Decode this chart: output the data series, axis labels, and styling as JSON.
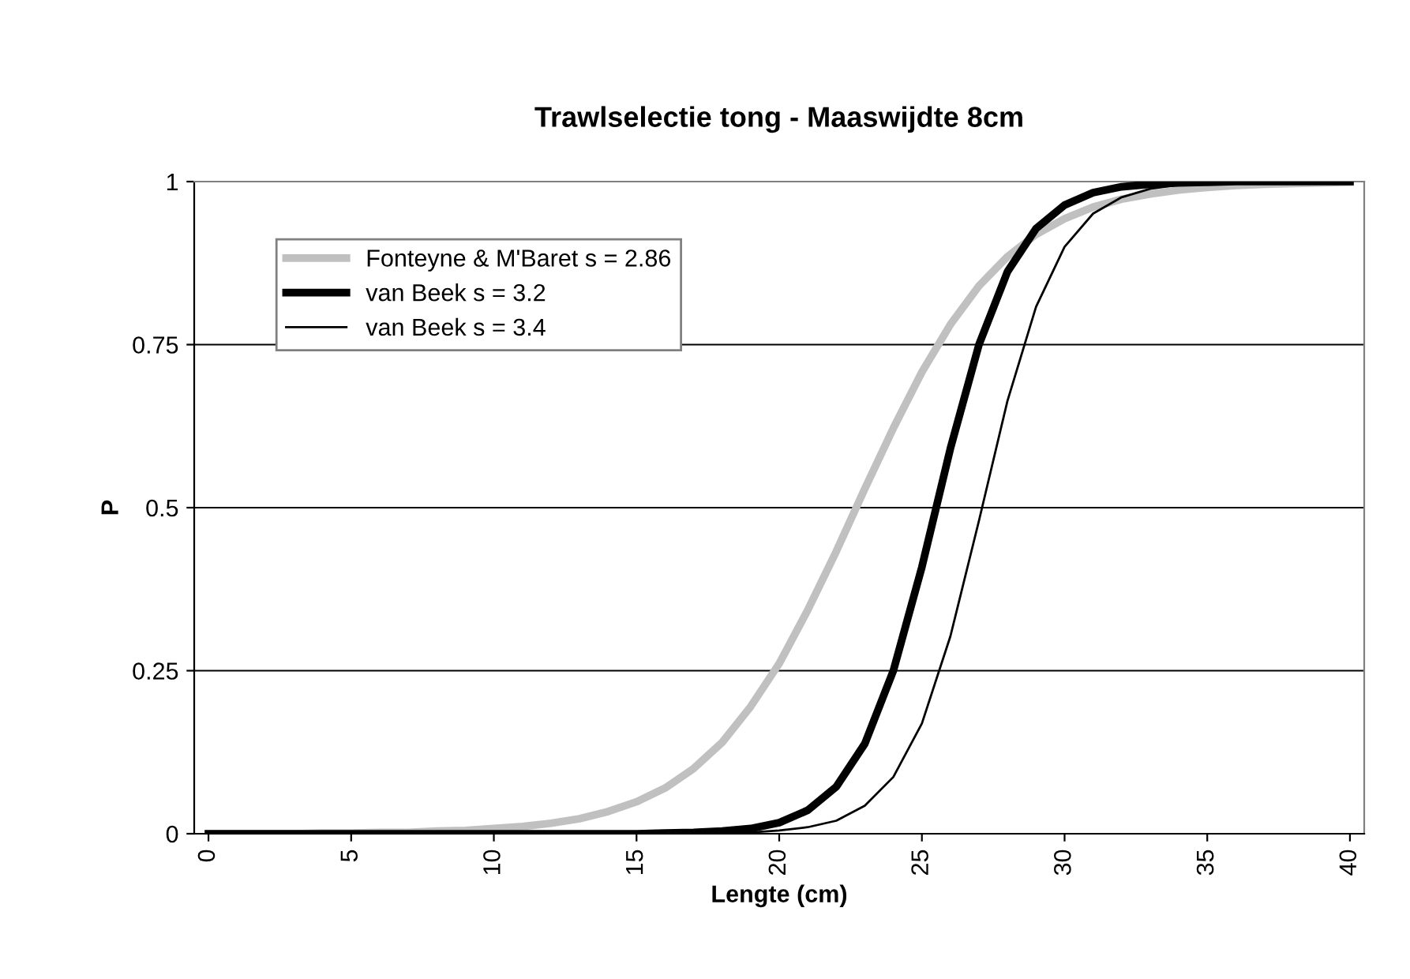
{
  "chart_data": {
    "type": "line",
    "title": "Trawlselectie tong - Maaswijdte 8cm",
    "xlabel": "Lengte (cm)",
    "ylabel": "P",
    "x": [
      0,
      1,
      2,
      3,
      4,
      5,
      6,
      7,
      8,
      9,
      10,
      11,
      12,
      13,
      14,
      15,
      16,
      17,
      18,
      19,
      20,
      21,
      22,
      23,
      24,
      25,
      26,
      27,
      28,
      29,
      30,
      31,
      32,
      33,
      34,
      35,
      36,
      37,
      38,
      39,
      40
    ],
    "series": [
      {
        "name": "Fonteyne & M'Baret s = 2.86",
        "color": "#c0c0c0",
        "values": [
          0,
          0,
          0,
          0,
          0.001,
          0.001,
          0.002,
          0.002,
          0.004,
          0.005,
          0.008,
          0.011,
          0.016,
          0.023,
          0.034,
          0.049,
          0.07,
          0.1,
          0.14,
          0.195,
          0.261,
          0.343,
          0.433,
          0.529,
          0.622,
          0.708,
          0.781,
          0.84,
          0.885,
          0.919,
          0.943,
          0.961,
          0.973,
          0.981,
          0.987,
          0.991,
          0.994,
          0.996,
          0.997,
          0.998,
          0.999
        ]
      },
      {
        "name": "van Beek s = 3.2",
        "color": "#000000",
        "values": [
          0,
          0,
          0,
          0,
          0,
          0,
          0,
          0,
          0,
          0,
          0,
          0,
          0,
          0,
          0,
          0,
          0.001,
          0.002,
          0.004,
          0.008,
          0.017,
          0.036,
          0.072,
          0.138,
          0.25,
          0.409,
          0.591,
          0.75,
          0.862,
          0.928,
          0.964,
          0.983,
          0.992,
          0.996,
          0.998,
          0.999,
          1,
          1,
          1,
          1,
          1
        ]
      },
      {
        "name": "van Beek s = 3.4",
        "color": "#000000",
        "values": [
          0,
          0,
          0,
          0,
          0,
          0,
          0,
          0,
          0,
          0,
          0,
          0,
          0,
          0,
          0,
          0,
          0,
          0,
          0.001,
          0.002,
          0.005,
          0.01,
          0.02,
          0.043,
          0.087,
          0.169,
          0.303,
          0.48,
          0.664,
          0.808,
          0.9,
          0.951,
          0.976,
          0.989,
          0.995,
          0.998,
          0.999,
          1,
          1,
          1,
          1
        ]
      }
    ],
    "xlim": [
      -0.5,
      40.5
    ],
    "xticks": [
      0,
      5,
      10,
      15,
      20,
      25,
      30,
      35,
      40
    ],
    "ylim": [
      0,
      1
    ],
    "yticks": [
      0,
      0.25,
      0.5,
      0.75,
      1
    ],
    "grid": "y",
    "legend": "top left",
    "marker": "none",
    "line_style": "solid"
  }
}
